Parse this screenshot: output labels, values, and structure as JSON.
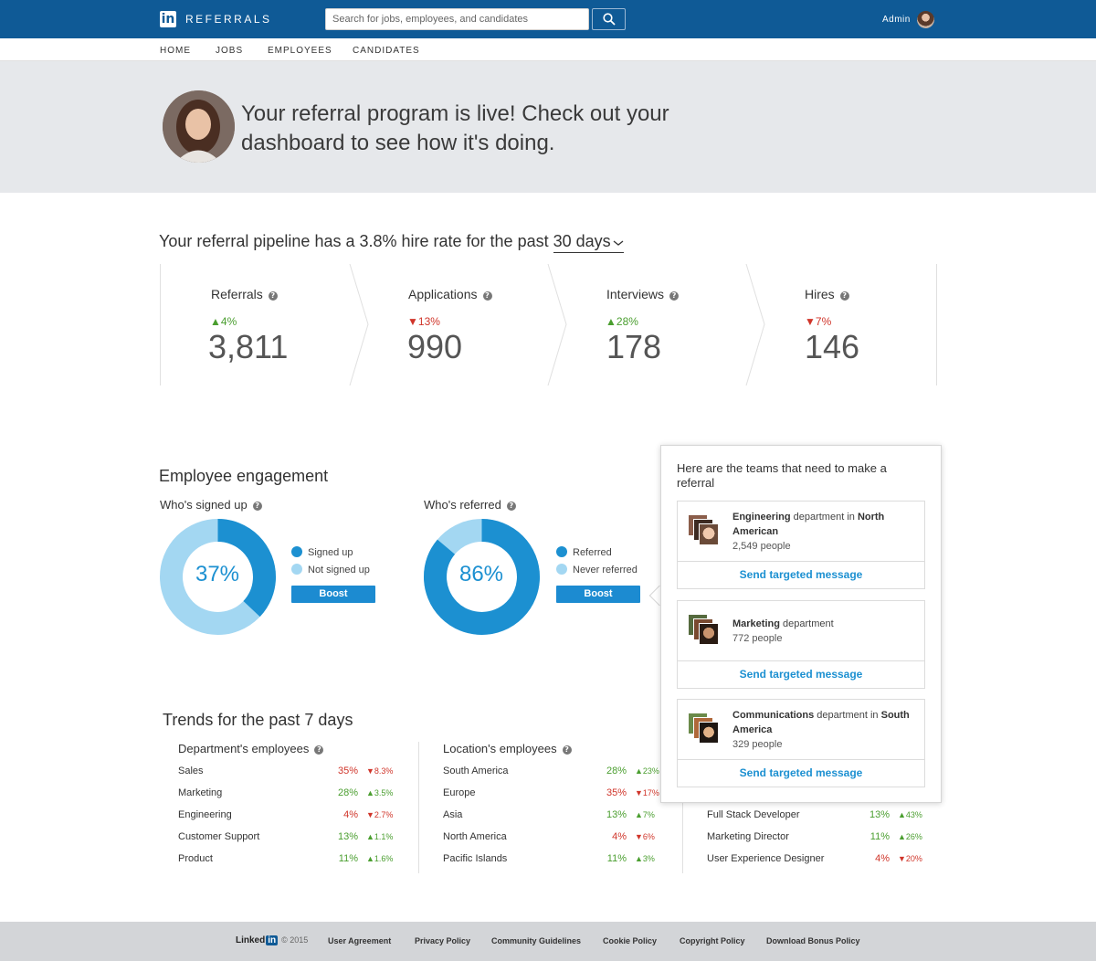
{
  "header": {
    "logo_mark": "in",
    "product": "REFERRALS",
    "search_placeholder": "Search for jobs, employees, and candidates",
    "user_label": "Admin"
  },
  "nav": {
    "items": [
      "HOME",
      "JOBS",
      "EMPLOYEES",
      "CANDIDATES"
    ]
  },
  "banner": {
    "message": "Your referral program is live! Check out your dashboard to see how it's doing."
  },
  "pipeline": {
    "title_prefix": "Your referral pipeline has a 3.8% hire rate for the past ",
    "period": "30 days",
    "stages": [
      {
        "label": "Referrals",
        "delta": "4%",
        "direction": "up",
        "value": "3,811"
      },
      {
        "label": "Applications",
        "delta": "13%",
        "direction": "down",
        "value": "990"
      },
      {
        "label": "Interviews",
        "delta": "28%",
        "direction": "up",
        "value": "178"
      },
      {
        "label": "Hires",
        "delta": "7%",
        "direction": "down",
        "value": "146"
      }
    ]
  },
  "engagement": {
    "title": "Employee engagement",
    "signed_up": {
      "title": "Who's signed up",
      "percent_label": "37%",
      "fraction": 0.37,
      "legend": [
        "Signed up",
        "Not signed up"
      ],
      "button": "Boost"
    },
    "referred": {
      "title": "Who's referred",
      "percent_label": "86%",
      "fraction": 0.86,
      "legend": [
        "Referred",
        "Never referred"
      ],
      "button": "Boost"
    },
    "colors": {
      "primary": "#1c90d1",
      "secondary": "#a3d7f2"
    }
  },
  "teams_popover": {
    "title": "Here are the teams that need to make a referral",
    "teams": [
      {
        "name": "Engineering",
        "mid": " department in ",
        "region": "North American",
        "count": "2,549 people",
        "action": "Send targeted message"
      },
      {
        "name": "Marketing",
        "mid": " department",
        "region": "",
        "count": "772 people",
        "action": "Send targeted message"
      },
      {
        "name": "Communications",
        "mid": " department in ",
        "region": "South America",
        "count": "329 people",
        "action": "Send targeted message"
      }
    ]
  },
  "trends": {
    "title": "Trends for the past 7 days",
    "departments": {
      "title": "Department's employees",
      "rows": [
        {
          "label": "Sales",
          "pct": "35%",
          "pct_dir": "down",
          "delta": "8.3%",
          "dir": "down"
        },
        {
          "label": "Marketing",
          "pct": "28%",
          "pct_dir": "up",
          "delta": "3.5%",
          "dir": "up"
        },
        {
          "label": "Engineering",
          "pct": "4%",
          "pct_dir": "down",
          "delta": "2.7%",
          "dir": "down"
        },
        {
          "label": "Customer Support",
          "pct": "13%",
          "pct_dir": "up",
          "delta": "1.1%",
          "dir": "up"
        },
        {
          "label": "Product",
          "pct": "11%",
          "pct_dir": "up",
          "delta": "1.6%",
          "dir": "up"
        }
      ]
    },
    "locations": {
      "title": "Location's employees",
      "rows": [
        {
          "label": "South America",
          "pct": "28%",
          "pct_dir": "up",
          "delta": "23%",
          "dir": "up"
        },
        {
          "label": "Europe",
          "pct": "35%",
          "pct_dir": "down",
          "delta": "17%",
          "dir": "down"
        },
        {
          "label": "Asia",
          "pct": "13%",
          "pct_dir": "up",
          "delta": "7%",
          "dir": "up"
        },
        {
          "label": "North America",
          "pct": "4%",
          "pct_dir": "down",
          "delta": "6%",
          "dir": "down"
        },
        {
          "label": "Pacific Islands",
          "pct": "11%",
          "pct_dir": "up",
          "delta": "3%",
          "dir": "up"
        }
      ]
    },
    "roles": {
      "rows": [
        {
          "label": "Full Stack Developer",
          "pct": "13%",
          "pct_dir": "up",
          "delta": "43%",
          "dir": "up"
        },
        {
          "label": "Marketing Director",
          "pct": "11%",
          "pct_dir": "up",
          "delta": "26%",
          "dir": "up"
        },
        {
          "label": "User Experience Designer",
          "pct": "4%",
          "pct_dir": "down",
          "delta": "20%",
          "dir": "down"
        }
      ]
    }
  },
  "footer": {
    "brand": "Linked",
    "brand_mark": "in",
    "copyright": "© 2015",
    "links": [
      "User Agreement",
      "Privacy Policy",
      "Community Guidelines",
      "Cookie Policy",
      "Copyright Policy",
      "Download Bonus Policy"
    ]
  }
}
